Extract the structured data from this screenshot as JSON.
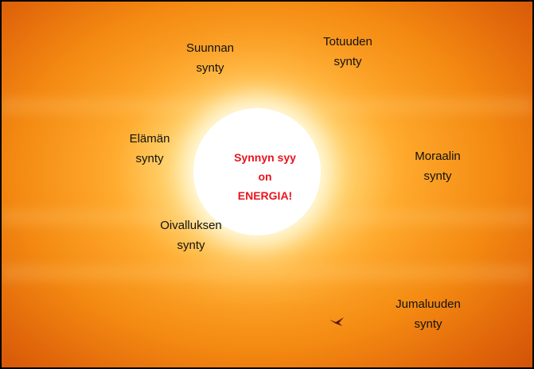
{
  "labels": [
    {
      "lines": [
        "Suunnan",
        "synty"
      ]
    },
    {
      "lines": [
        "Totuuden",
        "synty"
      ]
    },
    {
      "lines": [
        "Elämän",
        "synty"
      ]
    },
    {
      "lines": [
        "Moraalin",
        "synty"
      ]
    },
    {
      "lines": [
        "Oivalluksen",
        "synty"
      ]
    },
    {
      "lines": [
        "Jumaluuden",
        "synty"
      ]
    }
  ],
  "center": {
    "lines": [
      "Synnyn syy",
      "on",
      "ENERGIA!"
    ]
  }
}
